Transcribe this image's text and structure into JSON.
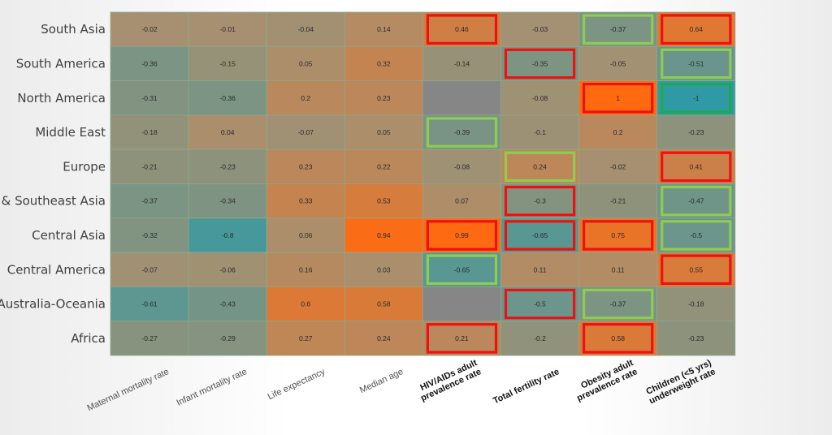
{
  "chart_data": {
    "type": "heatmap",
    "rows": [
      "South Asia",
      "South America",
      "North America",
      "Middle East",
      "Europe",
      "East & Southeast Asia",
      "Central Asia",
      "Central America",
      "Australia-Oceania",
      "Africa"
    ],
    "columns": [
      {
        "lines": [
          "Maternal mortality rate"
        ],
        "bold": false
      },
      {
        "lines": [
          "Infant mortality rate"
        ],
        "bold": false
      },
      {
        "lines": [
          "Life expectancy"
        ],
        "bold": false
      },
      {
        "lines": [
          "Median age"
        ],
        "bold": false
      },
      {
        "lines": [
          "HIV/AIDs adult",
          "prevalence rate"
        ],
        "bold": true
      },
      {
        "lines": [
          "Total fertility rate"
        ],
        "bold": true
      },
      {
        "lines": [
          "Obesity adult",
          "prevalence rate"
        ],
        "bold": true
      },
      {
        "lines": [
          "Children (<5 yrs)",
          "underweight rate"
        ],
        "bold": true
      }
    ],
    "values": [
      [
        "-0.02",
        "-0.01",
        "-0.04",
        "0.14",
        "0.46",
        "-0.03",
        "-0.37",
        "0.64"
      ],
      [
        "-0.36",
        "-0.15",
        "0.05",
        "0.32",
        "-0.14",
        "-0.35",
        "-0.05",
        "-0.51"
      ],
      [
        "-0.31",
        "-0.36",
        "0.2",
        "0.23",
        null,
        "-0.08",
        "1",
        "-1"
      ],
      [
        "-0.18",
        "0.04",
        "-0.07",
        "0.05",
        "-0.39",
        "-0.1",
        "0.2",
        "-0.23"
      ],
      [
        "-0.21",
        "-0.23",
        "0.23",
        "0.22",
        "-0.08",
        "0.24",
        "-0.02",
        "0.41"
      ],
      [
        "-0.37",
        "-0.34",
        "0.33",
        "0.53",
        "0.07",
        "-0.3",
        "-0.21",
        "-0.47"
      ],
      [
        "-0.32",
        "-0.8",
        "0.06",
        "0.94",
        "0.99",
        "-0.65",
        "0.75",
        "-0.5"
      ],
      [
        "-0.07",
        "-0.06",
        "0.16",
        "0.03",
        "-0.65",
        "0.11",
        "0.11",
        "0.55"
      ],
      [
        "-0.61",
        "-0.43",
        "0.6",
        "0.58",
        null,
        "-0.5",
        "-0.37",
        "-0.18"
      ],
      [
        "-0.27",
        "-0.29",
        "0.27",
        "0.24",
        "0.21",
        "-0.2",
        "0.58",
        "-0.23"
      ]
    ],
    "highlights": [
      {
        "row": 0,
        "col": 4,
        "color": "red"
      },
      {
        "row": 0,
        "col": 6,
        "color": "light-green"
      },
      {
        "row": 0,
        "col": 7,
        "color": "red"
      },
      {
        "row": 1,
        "col": 5,
        "color": "red"
      },
      {
        "row": 1,
        "col": 7,
        "color": "light-green"
      },
      {
        "row": 2,
        "col": 6,
        "color": "red"
      },
      {
        "row": 2,
        "col": 7,
        "color": "green"
      },
      {
        "row": 3,
        "col": 4,
        "color": "light-green"
      },
      {
        "row": 4,
        "col": 5,
        "color": "light-green"
      },
      {
        "row": 4,
        "col": 7,
        "color": "red"
      },
      {
        "row": 5,
        "col": 5,
        "color": "red"
      },
      {
        "row": 5,
        "col": 7,
        "color": "light-green"
      },
      {
        "row": 6,
        "col": 4,
        "color": "red"
      },
      {
        "row": 6,
        "col": 5,
        "color": "red"
      },
      {
        "row": 6,
        "col": 6,
        "color": "red"
      },
      {
        "row": 6,
        "col": 7,
        "color": "light-green"
      },
      {
        "row": 7,
        "col": 4,
        "color": "light-green"
      },
      {
        "row": 7,
        "col": 7,
        "color": "red"
      },
      {
        "row": 8,
        "col": 5,
        "color": "red"
      },
      {
        "row": 8,
        "col": 6,
        "color": "light-green"
      },
      {
        "row": 9,
        "col": 4,
        "color": "red"
      },
      {
        "row": 9,
        "col": 6,
        "color": "red"
      }
    ],
    "color_scale": {
      "negative": "#2f9aa6",
      "zero": "#a89070",
      "positive": "#ff6a10",
      "missing": "#868686"
    },
    "highlight_colors": {
      "red": "#ee1111",
      "light-green": "#8fcc50",
      "green": "#1eaa4a"
    }
  }
}
